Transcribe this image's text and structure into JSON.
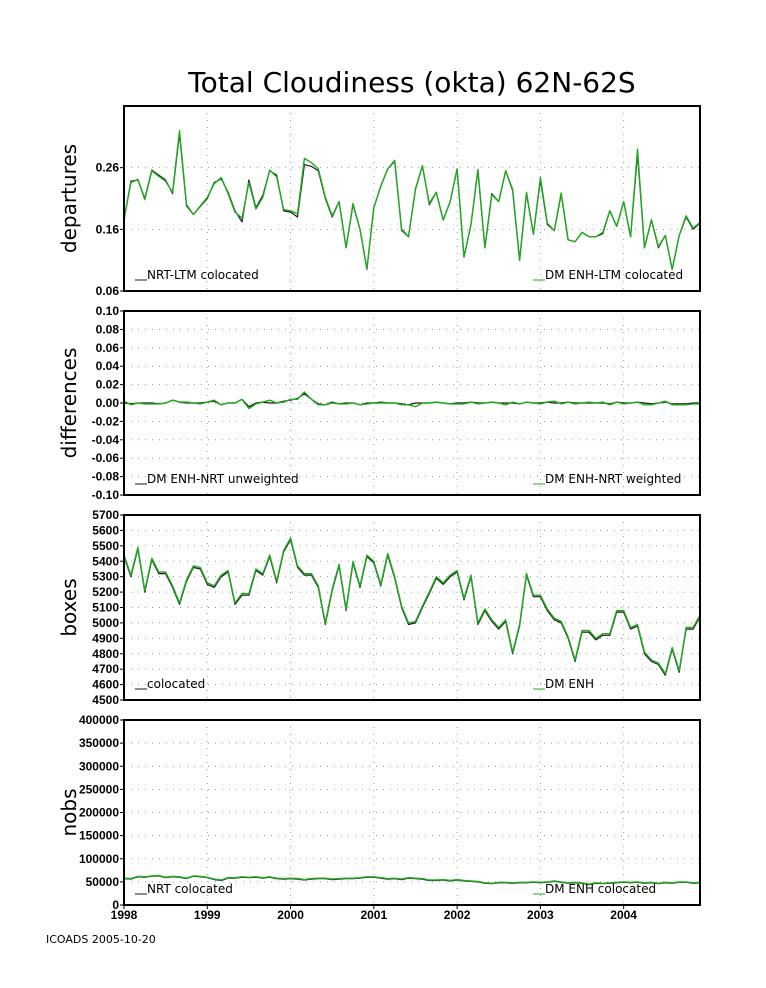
{
  "title": "Total Cloudiness (okta) 62N-62S",
  "credit": "ICOADS 2005-10-20",
  "colors": {
    "ref": "#1a1a1a",
    "alt": "#1faa1f",
    "frame": "#000000",
    "grid": "#9a9a9a"
  },
  "x_axis": {
    "years": [
      "1998",
      "1999",
      "2000",
      "2001",
      "2002",
      "2003",
      "2004"
    ],
    "start": 1998.0,
    "end": 2004.917
  },
  "chart_data": [
    {
      "type": "line",
      "ylabel": "departures",
      "ylim": [
        0.06,
        0.36
      ],
      "yticks": [
        "0.06",
        "0.16",
        "0.26"
      ],
      "ytick_values": [
        0.06,
        0.16,
        0.26
      ],
      "grid": true,
      "series": [
        {
          "name": "NRT-LTM colocated",
          "style": "ref",
          "legend": "left",
          "values": [
            0.175,
            0.238,
            0.24,
            0.21,
            0.256,
            0.248,
            0.24,
            0.218,
            0.315,
            0.198,
            0.184,
            0.197,
            0.21,
            0.236,
            0.242,
            0.22,
            0.19,
            0.172,
            0.24,
            0.195,
            0.215,
            0.255,
            0.248,
            0.19,
            0.188,
            0.18,
            0.265,
            0.262,
            0.255,
            0.21,
            0.18,
            0.205,
            0.13,
            0.2,
            0.16,
            0.095,
            0.195,
            0.23,
            0.258,
            0.27,
            0.16,
            0.148,
            0.225,
            0.263,
            0.2,
            0.22,
            0.175,
            0.205,
            0.258,
            0.115,
            0.168,
            0.255,
            0.13,
            0.218,
            0.205,
            0.255,
            0.223,
            0.11,
            0.218,
            0.152,
            0.24,
            0.168,
            0.158,
            0.217,
            0.143,
            0.14,
            0.155,
            0.148,
            0.148,
            0.153,
            0.19,
            0.165,
            0.205,
            0.148,
            0.282,
            0.13,
            0.175,
            0.13,
            0.15,
            0.095,
            0.15,
            0.18,
            0.16,
            0.17
          ]
        },
        {
          "name": "DM ENH-LTM colocated",
          "style": "alt",
          "legend": "right",
          "values": [
            0.176,
            0.236,
            0.241,
            0.208,
            0.255,
            0.246,
            0.238,
            0.22,
            0.32,
            0.2,
            0.184,
            0.198,
            0.212,
            0.234,
            0.244,
            0.218,
            0.188,
            0.178,
            0.236,
            0.193,
            0.212,
            0.256,
            0.245,
            0.192,
            0.19,
            0.185,
            0.275,
            0.268,
            0.258,
            0.212,
            0.182,
            0.205,
            0.13,
            0.202,
            0.16,
            0.096,
            0.195,
            0.23,
            0.258,
            0.272,
            0.158,
            0.148,
            0.226,
            0.263,
            0.202,
            0.22,
            0.175,
            0.205,
            0.258,
            0.115,
            0.168,
            0.257,
            0.13,
            0.216,
            0.205,
            0.255,
            0.225,
            0.11,
            0.22,
            0.152,
            0.244,
            0.17,
            0.158,
            0.219,
            0.143,
            0.14,
            0.155,
            0.148,
            0.148,
            0.155,
            0.19,
            0.165,
            0.205,
            0.148,
            0.29,
            0.13,
            0.176,
            0.132,
            0.15,
            0.095,
            0.15,
            0.182,
            0.162,
            0.171
          ]
        }
      ]
    },
    {
      "type": "line",
      "ylabel": "differences",
      "ylim": [
        -0.1,
        0.1
      ],
      "yticks": [
        "0.10",
        "0.08",
        "0.06",
        "0.04",
        "0.02",
        "0.00",
        "-0.02",
        "-0.04",
        "-0.06",
        "-0.08",
        "-0.10"
      ],
      "ytick_values": [
        0.1,
        0.08,
        0.06,
        0.04,
        0.02,
        0.0,
        -0.02,
        -0.04,
        -0.06,
        -0.08,
        -0.1
      ],
      "grid": true,
      "series": [
        {
          "name": "DM ENH-NRT unweighted",
          "style": "ref",
          "legend": "left",
          "values": [
            0.0,
            -0.001,
            0.0,
            0.0,
            0.0,
            -0.001,
            0.0,
            0.003,
            0.001,
            0.0,
            0.0,
            0.0,
            0.001,
            0.002,
            -0.002,
            0.0,
            0.0,
            0.004,
            -0.004,
            0.0,
            0.001,
            0.0,
            0.0,
            0.002,
            0.003,
            0.005,
            0.01,
            0.004,
            -0.001,
            -0.002,
            0.001,
            -0.001,
            0.0,
            0.0,
            -0.002,
            0.0,
            0.0,
            0.001,
            0.0,
            0.0,
            -0.001,
            -0.002,
            0.0,
            0.0,
            0.0,
            0.001,
            0.0,
            -0.001,
            0.0,
            0.0,
            0.001,
            0.0,
            0.0,
            0.001,
            0.0,
            0.0,
            0.0,
            -0.001,
            0.001,
            0.0,
            0.0,
            0.001,
            0.0,
            0.0,
            0.001,
            0.0,
            0.0,
            0.0,
            0.0,
            0.0,
            -0.001,
            0.001,
            0.0,
            0.0,
            0.001,
            0.0,
            -0.001,
            0.0,
            0.001,
            -0.001,
            -0.001,
            -0.001,
            0.0,
            0.0
          ]
        },
        {
          "name": "DM ENH-NRT weighted",
          "style": "alt",
          "legend": "right",
          "values": [
            0.002,
            -0.002,
            0.0,
            -0.001,
            -0.001,
            -0.001,
            0.0,
            0.003,
            0.001,
            0.001,
            0.0,
            -0.001,
            0.001,
            0.003,
            -0.002,
            0.0,
            0.0,
            0.004,
            -0.006,
            -0.001,
            0.001,
            0.003,
            0.0,
            0.001,
            0.004,
            0.004,
            0.012,
            0.004,
            -0.002,
            -0.002,
            0.0,
            -0.001,
            -0.001,
            0.0,
            -0.002,
            -0.001,
            0.0,
            0.0,
            0.0,
            0.0,
            -0.002,
            -0.002,
            -0.004,
            0.0,
            0.0,
            0.001,
            0.0,
            -0.001,
            -0.001,
            -0.001,
            0.001,
            -0.001,
            0.0,
            0.001,
            0.0,
            -0.002,
            0.001,
            -0.001,
            0.001,
            0.0,
            -0.001,
            0.001,
            0.002,
            -0.001,
            0.001,
            -0.001,
            0.0,
            0.001,
            0.0,
            0.001,
            -0.002,
            0.001,
            -0.001,
            0.0,
            0.001,
            -0.002,
            -0.002,
            0.0,
            0.002,
            -0.002,
            -0.002,
            -0.002,
            -0.001,
            -0.001
          ]
        }
      ]
    },
    {
      "type": "line",
      "ylabel": "boxes",
      "ylim": [
        4500,
        5700
      ],
      "yticks": [
        "5700",
        "5600",
        "5500",
        "5400",
        "5300",
        "5200",
        "5100",
        "5000",
        "4900",
        "4800",
        "4700",
        "4600",
        "4500"
      ],
      "ytick_values": [
        5700,
        5600,
        5500,
        5400,
        5300,
        5200,
        5100,
        5000,
        4900,
        4800,
        4700,
        4600,
        4500
      ],
      "grid": true,
      "series": [
        {
          "name": "colocated",
          "style": "ref",
          "legend": "left",
          "values": [
            5430,
            5300,
            5480,
            5200,
            5410,
            5320,
            5320,
            5230,
            5120,
            5270,
            5360,
            5350,
            5250,
            5230,
            5300,
            5330,
            5120,
            5180,
            5180,
            5340,
            5310,
            5430,
            5260,
            5460,
            5540,
            5360,
            5310,
            5310,
            5230,
            4990,
            5210,
            5370,
            5080,
            5390,
            5230,
            5430,
            5390,
            5240,
            5440,
            5290,
            5100,
            4990,
            5000,
            5100,
            5190,
            5290,
            5250,
            5300,
            5330,
            5150,
            5300,
            4990,
            5080,
            5010,
            4960,
            5010,
            4800,
            4980,
            5310,
            5170,
            5170,
            5080,
            5020,
            5000,
            4900,
            4750,
            4940,
            4940,
            4890,
            4920,
            4920,
            5070,
            5070,
            4960,
            4980,
            4800,
            4750,
            4730,
            4660,
            4830,
            4680,
            4960,
            4960,
            5040
          ]
        },
        {
          "name": "DM ENH",
          "style": "alt",
          "legend": "right",
          "values": [
            5440,
            5310,
            5490,
            5210,
            5420,
            5330,
            5330,
            5240,
            5130,
            5280,
            5370,
            5360,
            5260,
            5240,
            5310,
            5340,
            5130,
            5190,
            5190,
            5350,
            5320,
            5440,
            5270,
            5470,
            5550,
            5370,
            5320,
            5320,
            5240,
            5000,
            5220,
            5380,
            5090,
            5400,
            5240,
            5440,
            5400,
            5250,
            5450,
            5300,
            5110,
            5000,
            5010,
            5110,
            5200,
            5300,
            5260,
            5310,
            5340,
            5160,
            5310,
            5000,
            5090,
            5020,
            4970,
            5020,
            4810,
            4990,
            5320,
            5180,
            5180,
            5090,
            5030,
            5010,
            4910,
            4760,
            4950,
            4950,
            4900,
            4930,
            4930,
            5080,
            5080,
            4970,
            4990,
            4810,
            4760,
            4740,
            4670,
            4840,
            4690,
            4970,
            4970,
            5050
          ]
        }
      ]
    },
    {
      "type": "line",
      "ylabel": "nobs",
      "ylim": [
        0,
        400000
      ],
      "yticks": [
        "400000",
        "350000",
        "300000",
        "250000",
        "200000",
        "150000",
        "100000",
        "50000",
        "0"
      ],
      "ytick_values": [
        400000,
        350000,
        300000,
        250000,
        200000,
        150000,
        100000,
        50000,
        0
      ],
      "grid": true,
      "xticks": true,
      "series": [
        {
          "name": "NRT colocated",
          "style": "ref",
          "legend": "left",
          "values": [
            57000,
            56000,
            61000,
            60000,
            62000,
            63000,
            59000,
            61000,
            60000,
            57000,
            62000,
            61000,
            59000,
            55000,
            53000,
            58000,
            58000,
            60000,
            59000,
            60000,
            58000,
            60000,
            57000,
            56000,
            57000,
            56000,
            54000,
            56000,
            57000,
            57000,
            55000,
            56000,
            57000,
            57000,
            58000,
            60000,
            60000,
            58000,
            56000,
            57000,
            55000,
            58000,
            57000,
            56000,
            53000,
            53000,
            54000,
            52000,
            54000,
            52000,
            51000,
            50000,
            47000,
            46000,
            48000,
            48000,
            47000,
            48000,
            48000,
            49000,
            48000,
            49000,
            51000,
            49000,
            47000,
            48000,
            47000,
            44000,
            47000,
            46000,
            47000,
            48000,
            49000,
            48000,
            49000,
            47000,
            48000,
            46000,
            48000,
            47000,
            49000,
            49000,
            47000,
            48000
          ]
        },
        {
          "name": "DM ENH colocated",
          "style": "alt",
          "legend": "right",
          "values": [
            58000,
            57000,
            62000,
            61000,
            63000,
            64000,
            60000,
            62000,
            61000,
            58000,
            63000,
            62000,
            60000,
            56000,
            54000,
            59000,
            59000,
            61000,
            60000,
            61000,
            59000,
            61000,
            58000,
            57000,
            58000,
            57000,
            55000,
            57000,
            58000,
            58000,
            56000,
            57000,
            58000,
            58000,
            59000,
            61000,
            61000,
            59000,
            57000,
            58000,
            56000,
            59000,
            58000,
            57000,
            54000,
            54000,
            55000,
            53000,
            55000,
            53000,
            52000,
            51000,
            48000,
            47000,
            49000,
            49000,
            48000,
            49000,
            49000,
            50000,
            49000,
            50000,
            52000,
            50000,
            48000,
            49000,
            48000,
            45000,
            48000,
            47000,
            48000,
            49000,
            50000,
            49000,
            50000,
            48000,
            49000,
            47000,
            49000,
            48000,
            50000,
            50000,
            48000,
            49000
          ]
        }
      ]
    }
  ]
}
